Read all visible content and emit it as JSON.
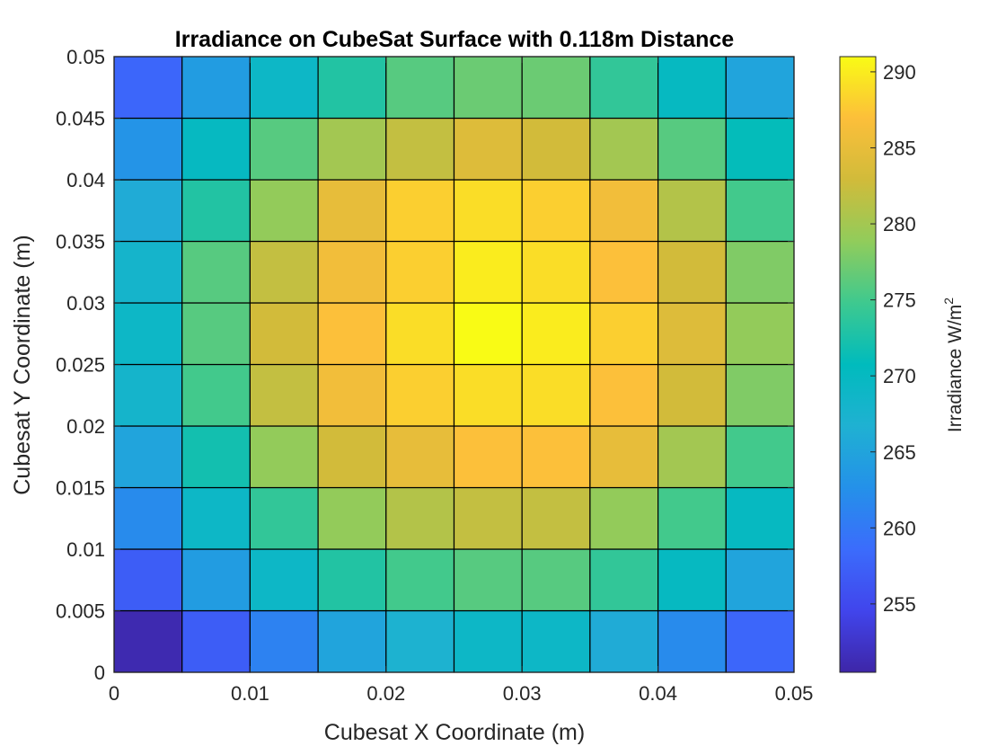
{
  "chart_data": {
    "type": "heatmap",
    "title": "Irradiance on CubeSat Surface with 0.118m Distance",
    "xlabel": "Cubesat X Coordinate (m)",
    "ylabel": "Cubesat Y Coordinate (m)",
    "colorbar_label": "Irradiance W/m",
    "colorbar_label_superscript": "2",
    "colormap": "parula",
    "xlim": [
      0,
      0.05
    ],
    "ylim": [
      0,
      0.05
    ],
    "clim": [
      250.5,
      291
    ],
    "x_ticks": [
      "0",
      "0.01",
      "0.02",
      "0.03",
      "0.04",
      "0.05"
    ],
    "x_tick_values": [
      0,
      0.01,
      0.02,
      0.03,
      0.04,
      0.05
    ],
    "y_ticks": [
      "0",
      "0.005",
      "0.01",
      "0.015",
      "0.02",
      "0.025",
      "0.03",
      "0.035",
      "0.04",
      "0.045",
      "0.05"
    ],
    "y_tick_values": [
      0,
      0.005,
      0.01,
      0.015,
      0.02,
      0.025,
      0.03,
      0.035,
      0.04,
      0.045,
      0.05
    ],
    "colorbar_ticks": [
      255,
      260,
      265,
      270,
      275,
      280,
      285,
      290
    ],
    "x_edges": [
      0,
      0.005,
      0.01,
      0.015,
      0.02,
      0.025,
      0.03,
      0.035,
      0.04,
      0.045,
      0.05
    ],
    "y_edges": [
      0,
      0.005,
      0.01,
      0.015,
      0.02,
      0.025,
      0.03,
      0.035,
      0.04,
      0.045,
      0.05
    ],
    "z_rows_bottom_to_top": [
      [
        251,
        257,
        261,
        265,
        267,
        269,
        269,
        266,
        262,
        258
      ],
      [
        257,
        264,
        269,
        273,
        275,
        276,
        276,
        274,
        270,
        265
      ],
      [
        262,
        269,
        274,
        279,
        281,
        282,
        282,
        279,
        275,
        270
      ],
      [
        265,
        272,
        279,
        283,
        285,
        287,
        287,
        285,
        280,
        275
      ],
      [
        268,
        275,
        282,
        286,
        288,
        289,
        289,
        287,
        283,
        278
      ],
      [
        269,
        276,
        283,
        287,
        289,
        291,
        290,
        288,
        284,
        279
      ],
      [
        268,
        276,
        282,
        286,
        288,
        290,
        289,
        287,
        283,
        278
      ],
      [
        266,
        273,
        279,
        285,
        288,
        289,
        288,
        286,
        281,
        275
      ],
      [
        263,
        270,
        276,
        280,
        282,
        284,
        283,
        280,
        276,
        271
      ],
      [
        258,
        264,
        269,
        273,
        276,
        277,
        277,
        274,
        270,
        265
      ]
    ]
  }
}
